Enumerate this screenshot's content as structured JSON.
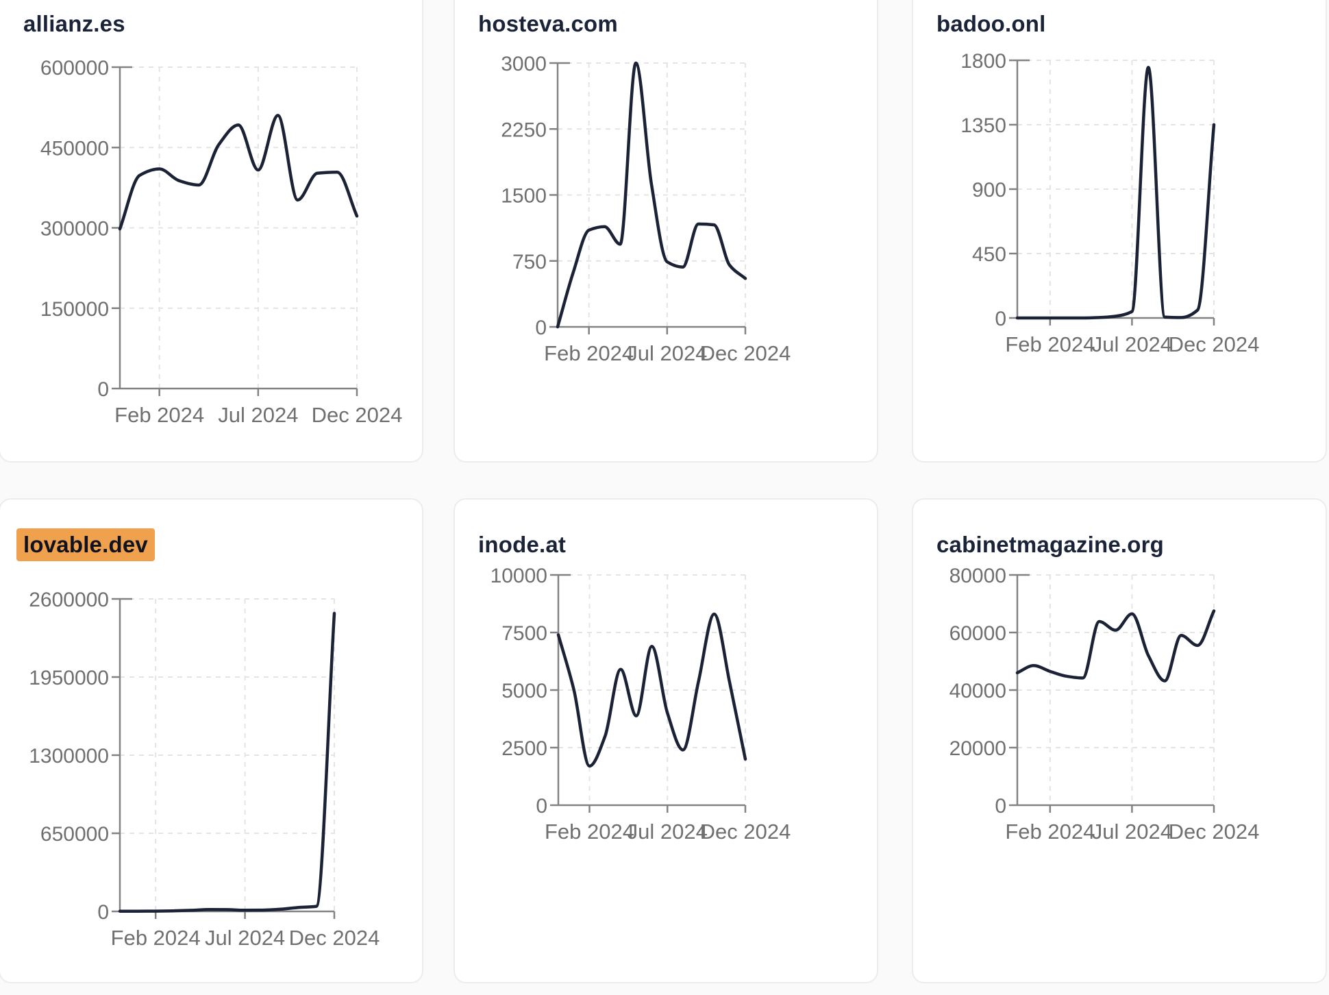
{
  "page": {
    "background_color": "#fafafa",
    "card_background": "#ffffff",
    "card_border_color": "#ececec",
    "highlight_color": "#f0a14e",
    "line_color": "#1b2235",
    "axis_color": "#828282",
    "tick_label_color": "#6f6f6f",
    "grid_color": "#e4e4e4",
    "title_color": "#1b2338"
  },
  "chart_data": [
    {
      "type": "line",
      "title": "allianz.es",
      "highlighted": false,
      "xlabel": "",
      "ylabel": "",
      "x": [
        "Dec 2023",
        "Jan 2024",
        "Feb 2024",
        "Mar 2024",
        "Apr 2024",
        "May 2024",
        "Jun 2024",
        "Jul 2024",
        "Aug 2024",
        "Sep 2024",
        "Oct 2024",
        "Nov 2024",
        "Dec 2024"
      ],
      "values": [
        298000,
        398000,
        410000,
        388000,
        380000,
        455000,
        492000,
        408000,
        510000,
        352000,
        402000,
        404000,
        322000
      ],
      "ylim": [
        0,
        600000
      ],
      "y_tick_labels": [
        "0",
        "150000",
        "300000",
        "450000",
        "600000"
      ],
      "x_tick_labels": [
        "Feb 2024",
        "Jul 2024",
        "Dec 2024"
      ],
      "x_tick_indices": [
        2,
        7,
        12
      ],
      "grid": "dashed",
      "legend": "none"
    },
    {
      "type": "line",
      "title": "hosteva.com",
      "highlighted": false,
      "xlabel": "",
      "ylabel": "",
      "x": [
        "Dec 2023",
        "Jan 2024",
        "Feb 2024",
        "Mar 2024",
        "Apr 2024",
        "May 2024",
        "Jun 2024",
        "Jul 2024",
        "Aug 2024",
        "Sep 2024",
        "Oct 2024",
        "Nov 2024",
        "Dec 2024"
      ],
      "values": [
        0,
        620,
        1100,
        1140,
        940,
        3000,
        1620,
        740,
        680,
        1170,
        1160,
        700,
        550
      ],
      "ylim": [
        0,
        3000
      ],
      "y_tick_labels": [
        "0",
        "750",
        "1500",
        "2250",
        "3000"
      ],
      "x_tick_labels": [
        "Feb 2024",
        "Jul 2024",
        "Dec 2024"
      ],
      "x_tick_indices": [
        2,
        7,
        12
      ],
      "grid": "dashed",
      "legend": "none"
    },
    {
      "type": "line",
      "title": "badoo.onl",
      "highlighted": false,
      "xlabel": "",
      "ylabel": "",
      "x": [
        "Dec 2023",
        "Jan 2024",
        "Feb 2024",
        "Mar 2024",
        "Apr 2024",
        "May 2024",
        "Jun 2024",
        "Jul 2024",
        "Aug 2024",
        "Sep 2024",
        "Oct 2024",
        "Nov 2024",
        "Dec 2024"
      ],
      "values": [
        0,
        0,
        0,
        0,
        0,
        3,
        12,
        45,
        1750,
        6,
        3,
        55,
        1350
      ],
      "ylim": [
        0,
        1800
      ],
      "y_tick_labels": [
        "0",
        "450",
        "900",
        "1350",
        "1800"
      ],
      "x_tick_labels": [
        "Feb 2024",
        "Jul 2024",
        "Dec 2024"
      ],
      "x_tick_indices": [
        2,
        7,
        12
      ],
      "grid": "dashed",
      "legend": "none"
    },
    {
      "type": "line",
      "title": "lovable.dev",
      "highlighted": true,
      "xlabel": "",
      "ylabel": "",
      "x": [
        "Dec 2023",
        "Jan 2024",
        "Feb 2024",
        "Mar 2024",
        "Apr 2024",
        "May 2024",
        "Jun 2024",
        "Jul 2024",
        "Aug 2024",
        "Sep 2024",
        "Oct 2024",
        "Nov 2024",
        "Dec 2024"
      ],
      "values": [
        1000,
        1500,
        2500,
        4500,
        9000,
        16000,
        15000,
        9500,
        11000,
        18000,
        33000,
        42000,
        2480000
      ],
      "ylim": [
        0,
        2600000
      ],
      "y_tick_labels": [
        "0",
        "650000",
        "1300000",
        "1950000",
        "2600000"
      ],
      "x_tick_labels": [
        "Feb 2024",
        "Jul 2024",
        "Dec 2024"
      ],
      "x_tick_indices": [
        2,
        7,
        12
      ],
      "grid": "dashed",
      "legend": "none"
    },
    {
      "type": "line",
      "title": "inode.at",
      "highlighted": false,
      "xlabel": "",
      "ylabel": "",
      "x": [
        "Dec 2023",
        "Jan 2024",
        "Feb 2024",
        "Mar 2024",
        "Apr 2024",
        "May 2024",
        "Jun 2024",
        "Jul 2024",
        "Aug 2024",
        "Sep 2024",
        "Oct 2024",
        "Nov 2024",
        "Dec 2024"
      ],
      "values": [
        7400,
        5000,
        1700,
        3000,
        5900,
        3880,
        6900,
        4000,
        2400,
        5400,
        8300,
        5300,
        2000
      ],
      "ylim": [
        0,
        10000
      ],
      "y_tick_labels": [
        "0",
        "2500",
        "5000",
        "7500",
        "10000"
      ],
      "x_tick_labels": [
        "Feb 2024",
        "Jul 2024",
        "Dec 2024"
      ],
      "x_tick_indices": [
        2,
        7,
        12
      ],
      "grid": "dashed",
      "legend": "none"
    },
    {
      "type": "line",
      "title": "cabinetmagazine.org",
      "highlighted": false,
      "xlabel": "",
      "ylabel": "",
      "x": [
        "Dec 2023",
        "Jan 2024",
        "Feb 2024",
        "Mar 2024",
        "Apr 2024",
        "May 2024",
        "Jun 2024",
        "Jul 2024",
        "Aug 2024",
        "Sep 2024",
        "Oct 2024",
        "Nov 2024",
        "Dec 2024"
      ],
      "values": [
        46000,
        48500,
        46500,
        44800,
        44200,
        63800,
        60800,
        66500,
        52000,
        43200,
        59000,
        55500,
        67500
      ],
      "ylim": [
        0,
        80000
      ],
      "y_tick_labels": [
        "0",
        "20000",
        "40000",
        "60000",
        "80000"
      ],
      "x_tick_labels": [
        "Feb 2024",
        "Jul 2024",
        "Dec 2024"
      ],
      "x_tick_indices": [
        2,
        7,
        12
      ],
      "grid": "dashed",
      "legend": "none"
    }
  ]
}
